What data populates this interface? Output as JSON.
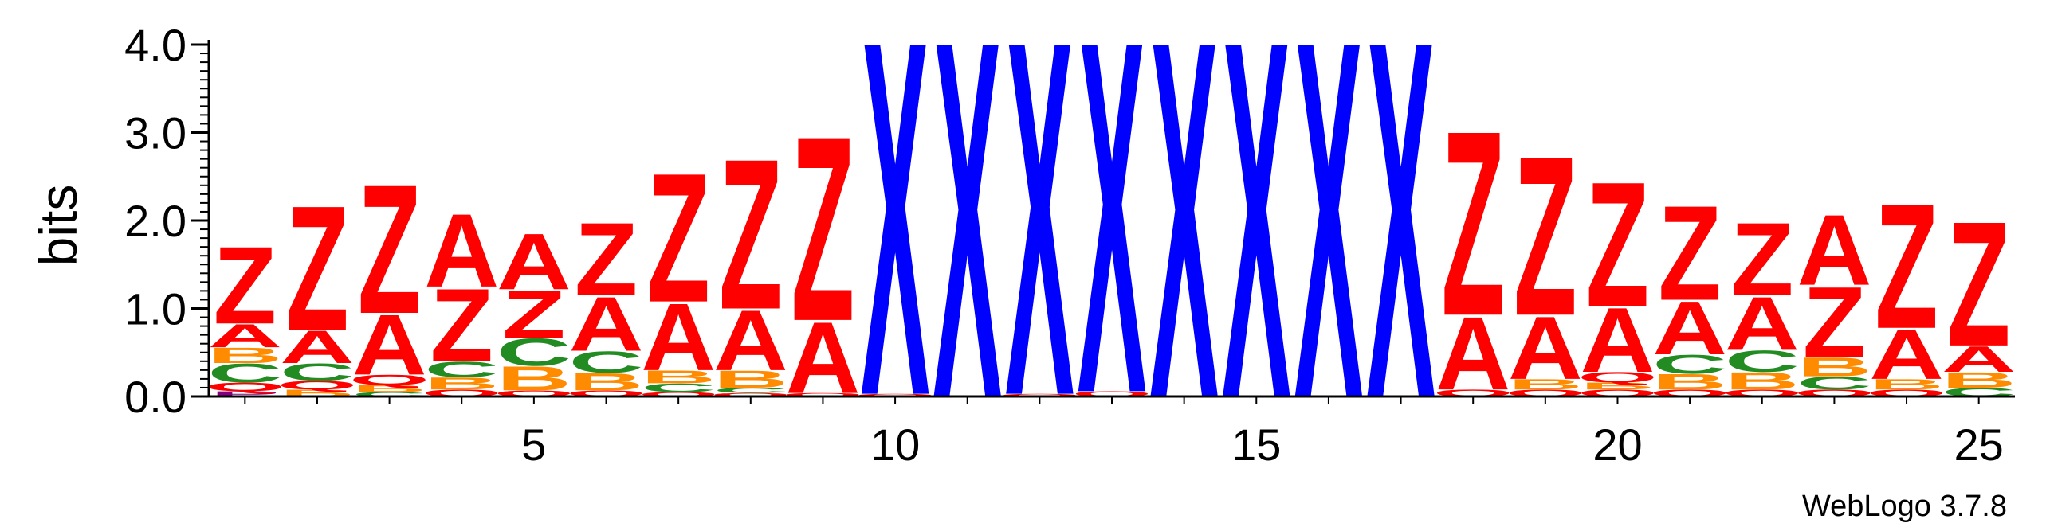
{
  "chart_data": {
    "type": "sequence-logo",
    "ylabel": "bits",
    "ylim": [
      0,
      4.0
    ],
    "yticks": [
      "0.0",
      "1.0",
      "2.0",
      "3.0",
      "4.0"
    ],
    "xticks": [
      5,
      10,
      15,
      20,
      25
    ],
    "positions": 25,
    "credit": "WebLogo 3.7.8",
    "colors": {
      "Z": "#ff0000",
      "A": "#ff0000",
      "X": "#0000ff",
      "B": "#ff8c00",
      "C": "#228b22",
      "Q": "#ff0000",
      "P": "#800080"
    },
    "columns": [
      [
        [
          "P",
          0.06
        ],
        [
          "Q",
          0.1
        ],
        [
          "C",
          0.22
        ],
        [
          "B",
          0.18
        ],
        [
          "A",
          0.27
        ],
        [
          "Z",
          0.9
        ]
      ],
      [
        [
          "B",
          0.08
        ],
        [
          "Q",
          0.1
        ],
        [
          "C",
          0.2
        ],
        [
          "A",
          0.38
        ],
        [
          "Z",
          1.45
        ]
      ],
      [
        [
          "C",
          0.05
        ],
        [
          "B",
          0.08
        ],
        [
          "Q",
          0.12
        ],
        [
          "A",
          0.7
        ],
        [
          "Z",
          1.5
        ]
      ],
      [
        [
          "Q",
          0.08
        ],
        [
          "B",
          0.14
        ],
        [
          "C",
          0.18
        ],
        [
          "Z",
          0.85
        ],
        [
          "A",
          0.85
        ]
      ],
      [
        [
          "Q",
          0.07
        ],
        [
          "B",
          0.28
        ],
        [
          "C",
          0.32
        ],
        [
          "Z",
          0.55
        ],
        [
          "A",
          0.65
        ]
      ],
      [
        [
          "Q",
          0.07
        ],
        [
          "B",
          0.2
        ],
        [
          "C",
          0.25
        ],
        [
          "A",
          0.63
        ],
        [
          "Z",
          0.85
        ]
      ],
      [
        [
          "Q",
          0.05
        ],
        [
          "C",
          0.1
        ],
        [
          "B",
          0.15
        ],
        [
          "A",
          0.78
        ],
        [
          "Z",
          1.5
        ]
      ],
      [
        [
          "Q",
          0.04
        ],
        [
          "C",
          0.06
        ],
        [
          "B",
          0.2
        ],
        [
          "A",
          0.7
        ],
        [
          "Z",
          1.75
        ]
      ],
      [
        [
          "Q",
          0.04
        ],
        [
          "A",
          0.83
        ],
        [
          "Z",
          2.15
        ]
      ],
      [
        [
          "Q",
          0.03
        ],
        [
          "X",
          4.2
        ]
      ],
      [
        [
          "X",
          4.2
        ]
      ],
      [
        [
          "Q",
          0.03
        ],
        [
          "X",
          4.2
        ]
      ],
      [
        [
          "Q",
          0.06
        ],
        [
          "X",
          4.2
        ]
      ],
      [
        [
          "X",
          4.2
        ]
      ],
      [
        [
          "X",
          4.2
        ]
      ],
      [
        [
          "X",
          4.2
        ]
      ],
      [
        [
          "X",
          4.2
        ]
      ],
      [
        [
          "Q",
          0.08
        ],
        [
          "A",
          0.85
        ],
        [
          "Z",
          2.15
        ]
      ],
      [
        [
          "Q",
          0.08
        ],
        [
          "B",
          0.12
        ],
        [
          "A",
          0.73
        ],
        [
          "Z",
          1.85
        ]
      ],
      [
        [
          "Q",
          0.08
        ],
        [
          "B",
          0.08
        ],
        [
          "Q",
          0.12
        ],
        [
          "A",
          0.75
        ],
        [
          "Z",
          1.45
        ]
      ],
      [
        [
          "Q",
          0.08
        ],
        [
          "B",
          0.18
        ],
        [
          "C",
          0.22
        ],
        [
          "A",
          0.62
        ],
        [
          "Z",
          1.1
        ]
      ],
      [
        [
          "Q",
          0.08
        ],
        [
          "B",
          0.2
        ],
        [
          "C",
          0.25
        ],
        [
          "A",
          0.62
        ],
        [
          "Z",
          0.85
        ]
      ],
      [
        [
          "Q",
          0.08
        ],
        [
          "C",
          0.15
        ],
        [
          "B",
          0.22
        ],
        [
          "Z",
          0.82
        ],
        [
          "A",
          0.82
        ]
      ],
      [
        [
          "Q",
          0.08
        ],
        [
          "B",
          0.12
        ],
        [
          "A",
          0.58
        ],
        [
          "Z",
          1.45
        ]
      ],
      [
        [
          "C",
          0.1
        ],
        [
          "B",
          0.18
        ],
        [
          "A",
          0.3
        ],
        [
          "Z",
          1.45
        ]
      ]
    ]
  }
}
